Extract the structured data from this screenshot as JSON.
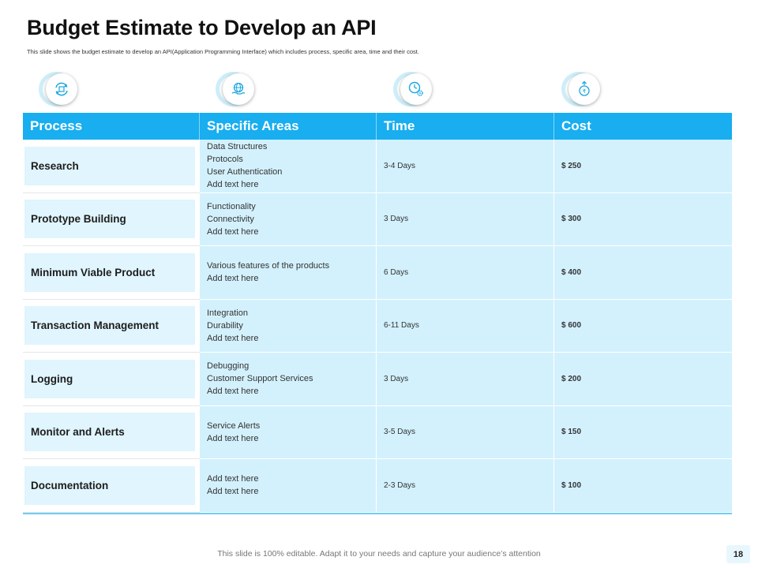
{
  "header": {
    "title": "Budget Estimate to Develop an API",
    "subtitle": "This slide shows the budget estimate to develop an API(Application Programming Interface) which includes process, specific area, time and their cost."
  },
  "icons": [
    "refresh-cycle-icon",
    "globe-hand-icon",
    "clock-gear-icon",
    "rupee-growth-icon"
  ],
  "table": {
    "headers": [
      "Process",
      "Specific Areas",
      "Time",
      "Cost"
    ],
    "rows": [
      {
        "process": "Research",
        "areas": "Data Structures\nProtocols\nUser Authentication\nAdd text here",
        "time": "3-4 Days",
        "cost": "$ 250"
      },
      {
        "process": "Prototype Building",
        "areas": "Functionality\nConnectivity\nAdd text here",
        "time": "3 Days",
        "cost": "$ 300"
      },
      {
        "process": "Minimum Viable Product",
        "areas": "Various features of the products\nAdd text here",
        "time": "6 Days",
        "cost": "$ 400"
      },
      {
        "process": "Transaction Management",
        "areas": "Integration\nDurability\nAdd text here",
        "time": "6-11 Days",
        "cost": "$ 600"
      },
      {
        "process": "Logging",
        "areas": "Debugging\nCustomer Support Services\nAdd text here",
        "time": "3 Days",
        "cost": "$ 200"
      },
      {
        "process": "Monitor and Alerts",
        "areas": "Service Alerts\nAdd text here",
        "time": "3-5 Days",
        "cost": "$ 150"
      },
      {
        "process": "Documentation",
        "areas": "Add text here\nAdd text here",
        "time": "2-3 Days",
        "cost": "$ 100"
      }
    ]
  },
  "footer": {
    "text": "This slide is 100% editable. Adapt it to your needs and capture your audience’s attention",
    "page_number": "18"
  },
  "colors": {
    "header_blue": "#18aef0",
    "cell_blue": "#d3f1fd",
    "process_box": "#e0f5fd"
  }
}
